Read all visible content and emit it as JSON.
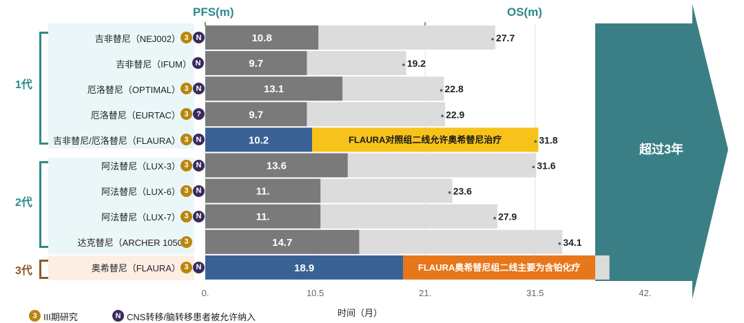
{
  "headers": {
    "pfs": "PFS(m)",
    "os": "OS(m)"
  },
  "generations": [
    {
      "label": "1代",
      "color": "#2a8a8a"
    },
    {
      "label": "2代",
      "color": "#2a8a8a"
    },
    {
      "label": "3代",
      "color": "#8b5a2b"
    }
  ],
  "rows": [
    {
      "label": "吉非替尼（NEJ002）",
      "badges": [
        "3",
        "N"
      ],
      "pfs": 10.8,
      "os": 27.7,
      "pfs_text": "10.8",
      "os_text": "27.7",
      "pfs_color": "#7a7a7a"
    },
    {
      "label": "吉非替尼（IFUM）",
      "badges": [
        "N"
      ],
      "pfs": 9.7,
      "os": 19.2,
      "pfs_text": "9.7",
      "os_text": "19.2",
      "pfs_color": "#7a7a7a"
    },
    {
      "label": "厄洛替尼（OPTIMAL）",
      "badges": [
        "3",
        "N"
      ],
      "pfs": 13.1,
      "os": 22.8,
      "pfs_text": "13.1",
      "os_text": "22.8",
      "pfs_color": "#7a7a7a"
    },
    {
      "label": "厄洛替尼（EURTAC）",
      "badges": [
        "3",
        "?"
      ],
      "pfs": 9.7,
      "os": 22.9,
      "pfs_text": "9.7",
      "os_text": "22.9",
      "pfs_color": "#7a7a7a"
    },
    {
      "label": "吉非替尼/厄洛替尼（FLAURA）",
      "badges": [
        "3",
        "N"
      ],
      "pfs": 10.2,
      "os": 31.8,
      "pfs_text": "10.2",
      "os_text": "31.8",
      "pfs_color": "#3a6194",
      "note": "FLAURA对照组二线允许奥希替尼治疗",
      "note_color": "#f7c21a",
      "note_text_color": "#1a1a1a"
    },
    {
      "label": "阿法替尼（LUX-3）",
      "badges": [
        "3",
        "N"
      ],
      "pfs": 13.6,
      "os": 31.6,
      "pfs_text": "13.6",
      "os_text": "31.6",
      "pfs_color": "#7a7a7a"
    },
    {
      "label": "阿法替尼（LUX-6）",
      "badges": [
        "3",
        "N"
      ],
      "pfs": 11.0,
      "os": 23.6,
      "pfs_text": "11.",
      "os_text": "23.6",
      "pfs_color": "#7a7a7a"
    },
    {
      "label": "阿法替尼（LUX-7）",
      "badges": [
        "3",
        "N"
      ],
      "pfs": 11.0,
      "os": 27.9,
      "pfs_text": "11.",
      "os_text": "27.9",
      "pfs_color": "#7a7a7a"
    },
    {
      "label": "达克替尼（ARCHER 1050）",
      "badges": [
        "3"
      ],
      "pfs": 14.7,
      "os": 34.1,
      "pfs_text": "14.7",
      "os_text": "34.1",
      "pfs_color": "#7a7a7a"
    },
    {
      "label": "奥希替尼（FLAURA）",
      "badges": [
        "3",
        "N"
      ],
      "pfs": 18.9,
      "os": 38.6,
      "pfs_text": "18.9",
      "os_text": "",
      "pfs_color": "#3a6194",
      "note": "FLAURA奥希替尼组二线主要为含铂化疗",
      "note_color": "#e8761a",
      "note_text_color": "#ffffff"
    }
  ],
  "chart_data": {
    "type": "bar",
    "categories": [
      "吉非替尼（NEJ002）",
      "吉非替尼（IFUM）",
      "厄洛替尼（OPTIMAL）",
      "厄洛替尼（EURTAC）",
      "吉非替尼/厄洛替尼（FLAURA）",
      "阿法替尼（LUX-3）",
      "阿法替尼（LUX-6）",
      "阿法替尼（LUX-7）",
      "达克替尼（ARCHER 1050）",
      "奥希替尼（FLAURA）"
    ],
    "series": [
      {
        "name": "PFS(m)",
        "values": [
          10.8,
          9.7,
          13.1,
          9.7,
          10.2,
          13.6,
          11.0,
          11.0,
          14.7,
          18.9
        ]
      },
      {
        "name": "OS(m)",
        "values": [
          27.7,
          19.2,
          22.8,
          22.9,
          31.8,
          31.6,
          23.6,
          27.9,
          34.1,
          38.6
        ]
      }
    ],
    "xlabel": "时间（月）",
    "xticks": [
      "0.",
      "10.5",
      "21.",
      "31.5",
      "42."
    ],
    "xlim": [
      0,
      42
    ],
    "orientation": "horizontal",
    "grid": true,
    "arrow_label": "超过3年"
  },
  "legend": [
    {
      "badge": "3",
      "text": "III期研究"
    },
    {
      "badge": "N",
      "text": "CNS转移/脑转移患者被允许纳入"
    }
  ]
}
